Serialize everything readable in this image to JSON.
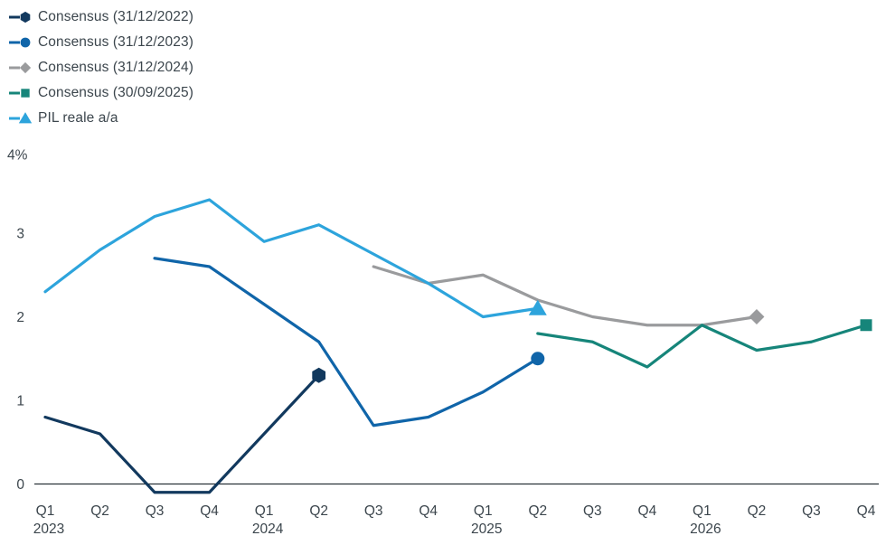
{
  "colors": {
    "background": "#ffffff",
    "text": "#3c464d",
    "axis_line": "#2a3238"
  },
  "chart_data": {
    "type": "line",
    "title": "",
    "unit": "%",
    "grid": false,
    "legend_position": "top-left",
    "categories": [
      "Q1 2023",
      "Q2 2023",
      "Q3 2023",
      "Q4 2023",
      "Q1 2024",
      "Q2 2024",
      "Q3 2024",
      "Q4 2024",
      "Q1 2025",
      "Q2 2025",
      "Q3 2025",
      "Q4 2025",
      "Q1 2026",
      "Q2 2026",
      "Q3 2026",
      "Q4 2026"
    ],
    "y_axis": {
      "ticks": [
        0,
        1,
        2,
        3
      ],
      "top_label": "4%",
      "min": -0.35,
      "max": 4
    },
    "series": [
      {
        "name": "Consensus (31/12/2022)",
        "color": "#12395e",
        "marker": "hexagon",
        "marker_at": "end",
        "start_index": 0,
        "values": [
          0.8,
          0.6,
          -0.1,
          -0.1,
          0.6,
          1.3
        ]
      },
      {
        "name": "Consensus (31/12/2023)",
        "color": "#1065a9",
        "marker": "circle",
        "marker_at": "end",
        "start_index": 2,
        "values": [
          2.7,
          2.6,
          2.15,
          1.7,
          0.7,
          0.8,
          1.1,
          1.5
        ]
      },
      {
        "name": "Consensus (31/12/2024)",
        "color": "#9a9b9d",
        "marker": "diamond",
        "marker_at": "end",
        "start_index": 6,
        "values": [
          2.6,
          2.4,
          2.5,
          2.2,
          2.0,
          1.9,
          1.9,
          2.0
        ]
      },
      {
        "name": "Consensus (30/09/2025)",
        "color": "#16857a",
        "marker": "square",
        "marker_at": "end",
        "start_index": 9,
        "values": [
          1.8,
          1.7,
          1.4,
          1.9,
          1.6,
          1.7,
          1.9
        ]
      },
      {
        "name": "PIL reale a/a",
        "color": "#2da4dc",
        "marker": "triangle",
        "marker_at": "end",
        "start_index": 0,
        "values": [
          2.3,
          2.8,
          3.2,
          3.4,
          2.9,
          3.1,
          2.75,
          2.4,
          2.0,
          2.1
        ]
      }
    ]
  }
}
